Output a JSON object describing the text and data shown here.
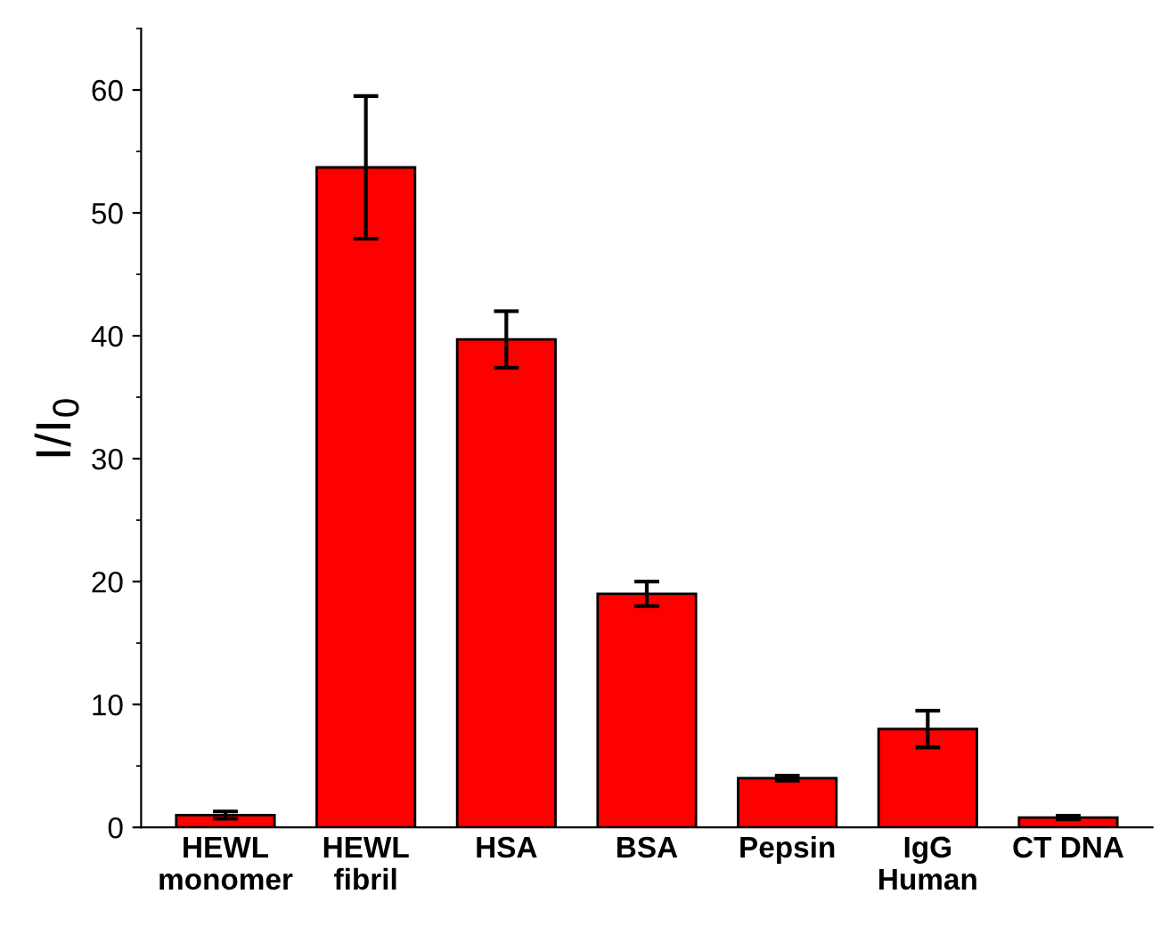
{
  "chart_data": {
    "type": "bar",
    "ylabel": "I/I$_{0}$",
    "categories": [
      "HEWL\nmonomer",
      "HEWL\nfibril",
      "HSA",
      "BSA",
      "Pepsin",
      "IgG\nHuman",
      "CT DNA"
    ],
    "values": [
      1.0,
      53.7,
      39.7,
      19.0,
      4.0,
      8.0,
      0.8
    ],
    "errors": [
      0.3,
      5.8,
      2.3,
      1.0,
      0.2,
      1.5,
      0.15
    ],
    "color": "#ff0000",
    "ylim": [
      0,
      65
    ],
    "yticks": [
      0,
      10,
      20,
      30,
      40,
      50,
      60
    ],
    "grid": false
  }
}
